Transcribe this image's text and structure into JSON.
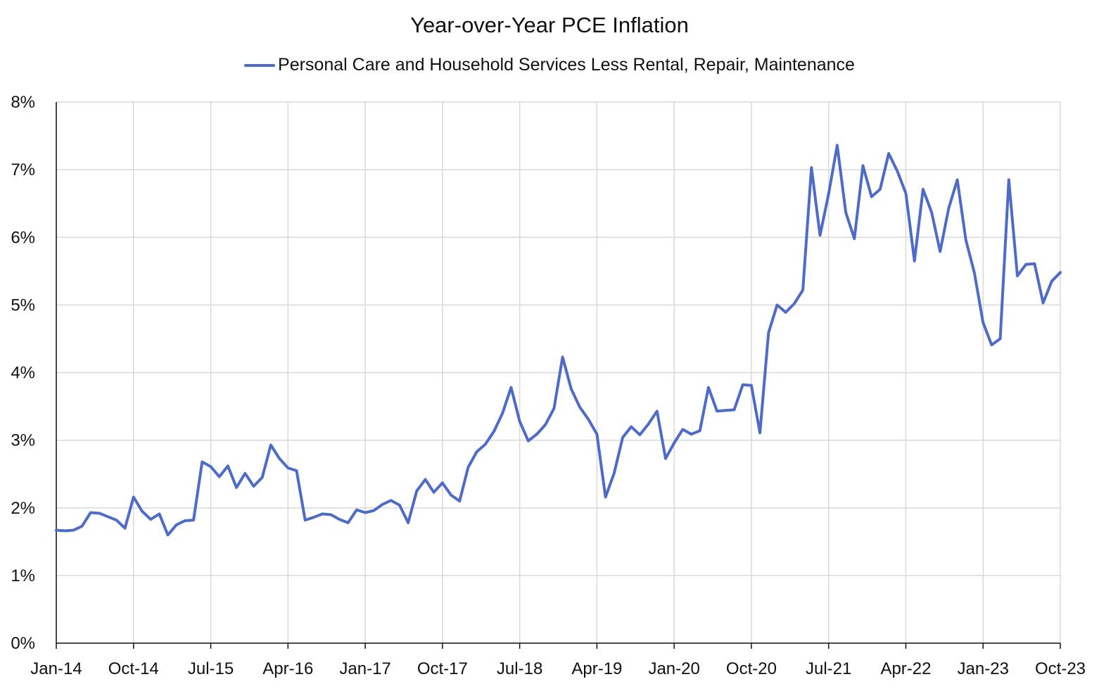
{
  "chart_data": {
    "type": "line",
    "title": "Year-over-Year PCE Inflation",
    "xlabel": "",
    "ylabel": "",
    "ylim": [
      0,
      8
    ],
    "y_ticks": [
      "0%",
      "1%",
      "2%",
      "3%",
      "4%",
      "5%",
      "6%",
      "7%",
      "8%"
    ],
    "x_ticks": [
      "Jan-14",
      "Oct-14",
      "Jul-15",
      "Apr-16",
      "Jan-17",
      "Oct-17",
      "Jul-18",
      "Apr-19",
      "Jan-20",
      "Oct-20",
      "Jul-21",
      "Apr-22",
      "Jan-23",
      "Oct-23"
    ],
    "grid": true,
    "legend_position": "top-center",
    "series": [
      {
        "name": "Personal Care and Household Services Less Rental, Repair, Maintenance",
        "color": "#4F6BC8",
        "x_start": "Jan-14",
        "x_end": "Oct-23",
        "frequency": "monthly",
        "values": [
          1.67,
          1.66,
          1.67,
          1.73,
          1.93,
          1.92,
          1.87,
          1.82,
          1.7,
          2.16,
          1.95,
          1.83,
          1.91,
          1.6,
          1.75,
          1.81,
          1.82,
          2.68,
          2.61,
          2.46,
          2.62,
          2.3,
          2.51,
          2.32,
          2.45,
          2.93,
          2.73,
          2.59,
          2.55,
          1.82,
          1.86,
          1.91,
          1.9,
          1.83,
          1.78,
          1.97,
          1.93,
          1.96,
          2.05,
          2.11,
          2.04,
          1.78,
          2.25,
          2.42,
          2.23,
          2.37,
          2.19,
          2.1,
          2.6,
          2.83,
          2.94,
          3.13,
          3.4,
          3.78,
          3.28,
          2.99,
          3.09,
          3.23,
          3.47,
          4.23,
          3.76,
          3.49,
          3.31,
          3.09,
          2.16,
          2.51,
          3.04,
          3.2,
          3.08,
          3.24,
          3.43,
          2.73,
          2.96,
          3.16,
          3.09,
          3.14,
          3.78,
          3.43,
          3.44,
          3.45,
          3.82,
          3.81,
          3.11,
          4.59,
          5.0,
          4.89,
          5.02,
          5.22,
          7.03,
          6.03,
          6.64,
          7.36,
          6.37,
          5.98,
          7.06,
          6.6,
          6.71,
          7.24,
          6.98,
          6.65,
          5.65,
          6.71,
          6.37,
          5.79,
          6.43,
          6.85,
          5.96,
          5.47,
          4.74,
          4.41,
          4.5,
          6.85,
          5.43,
          5.6,
          5.61,
          5.03,
          5.35,
          5.48
        ]
      }
    ]
  }
}
